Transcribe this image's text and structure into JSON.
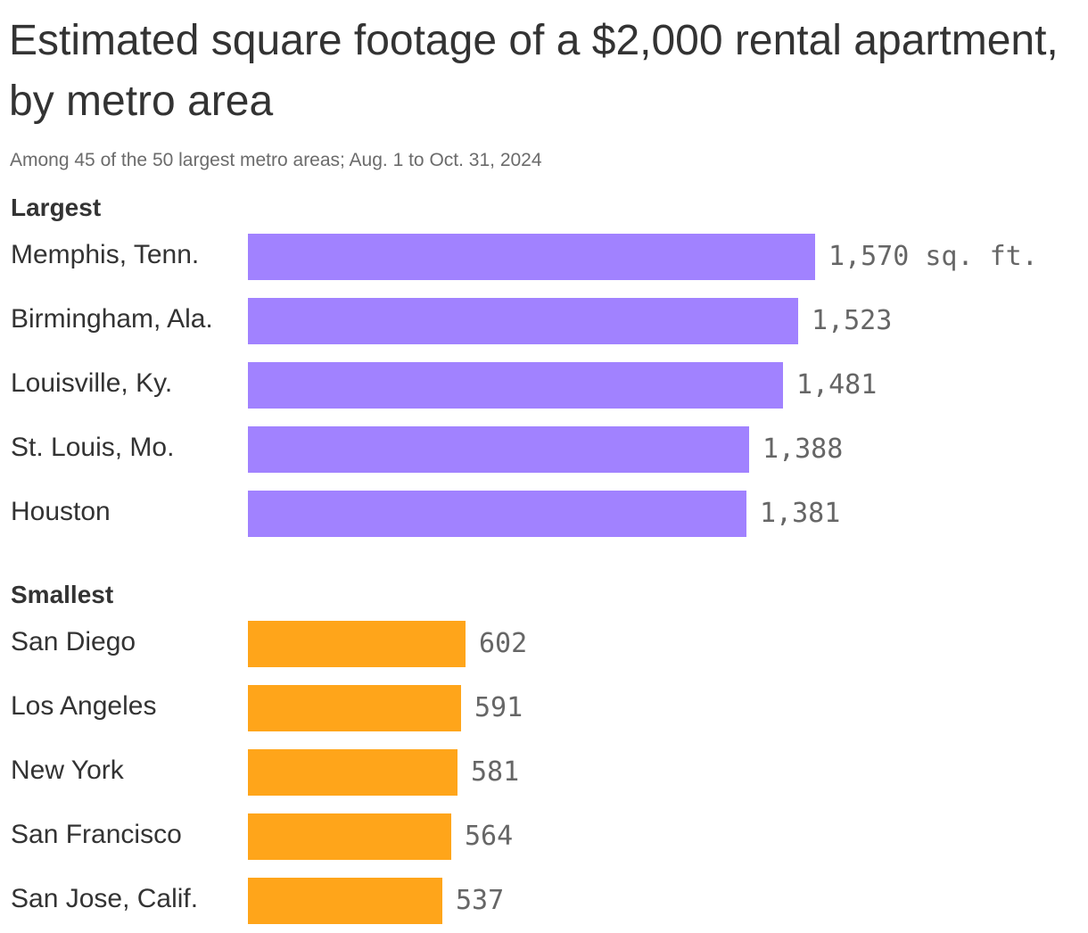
{
  "title": "Estimated square footage of a $2,000 rental apartment, by metro area",
  "subtitle": "Among 45 of the 50 largest metro areas; Aug. 1 to Oct. 31, 2024",
  "colors": {
    "largest": "#a182ff",
    "smallest": "#ffa51a",
    "text": "#333333",
    "muted": "#666666"
  },
  "unit_suffix": " sq. ft.",
  "chart_data": {
    "type": "bar",
    "orientation": "horizontal",
    "title": "Estimated square footage of a $2,000 rental apartment, by metro area",
    "subtitle": "Among 45 of the 50 largest metro areas; Aug. 1 to Oct. 31, 2024",
    "groups": [
      {
        "name": "Largest",
        "color": "#a182ff",
        "categories": [
          "Memphis, Tenn.",
          "Birmingham, Ala.",
          "Louisville, Ky.",
          "St. Louis, Mo.",
          "Houston"
        ],
        "values": [
          1570,
          1523,
          1481,
          1388,
          1381
        ],
        "value_labels": [
          "1,570 sq. ft.",
          "1,523",
          "1,481",
          "1,388",
          "1,381"
        ]
      },
      {
        "name": "Smallest",
        "color": "#ffa51a",
        "categories": [
          "San Diego",
          "Los Angeles",
          "New York",
          "San Francisco",
          "San Jose, Calif."
        ],
        "values": [
          602,
          591,
          581,
          564,
          537
        ],
        "value_labels": [
          "602",
          "591",
          "581",
          "564",
          "537"
        ]
      }
    ],
    "grid": false,
    "legend": "none"
  }
}
